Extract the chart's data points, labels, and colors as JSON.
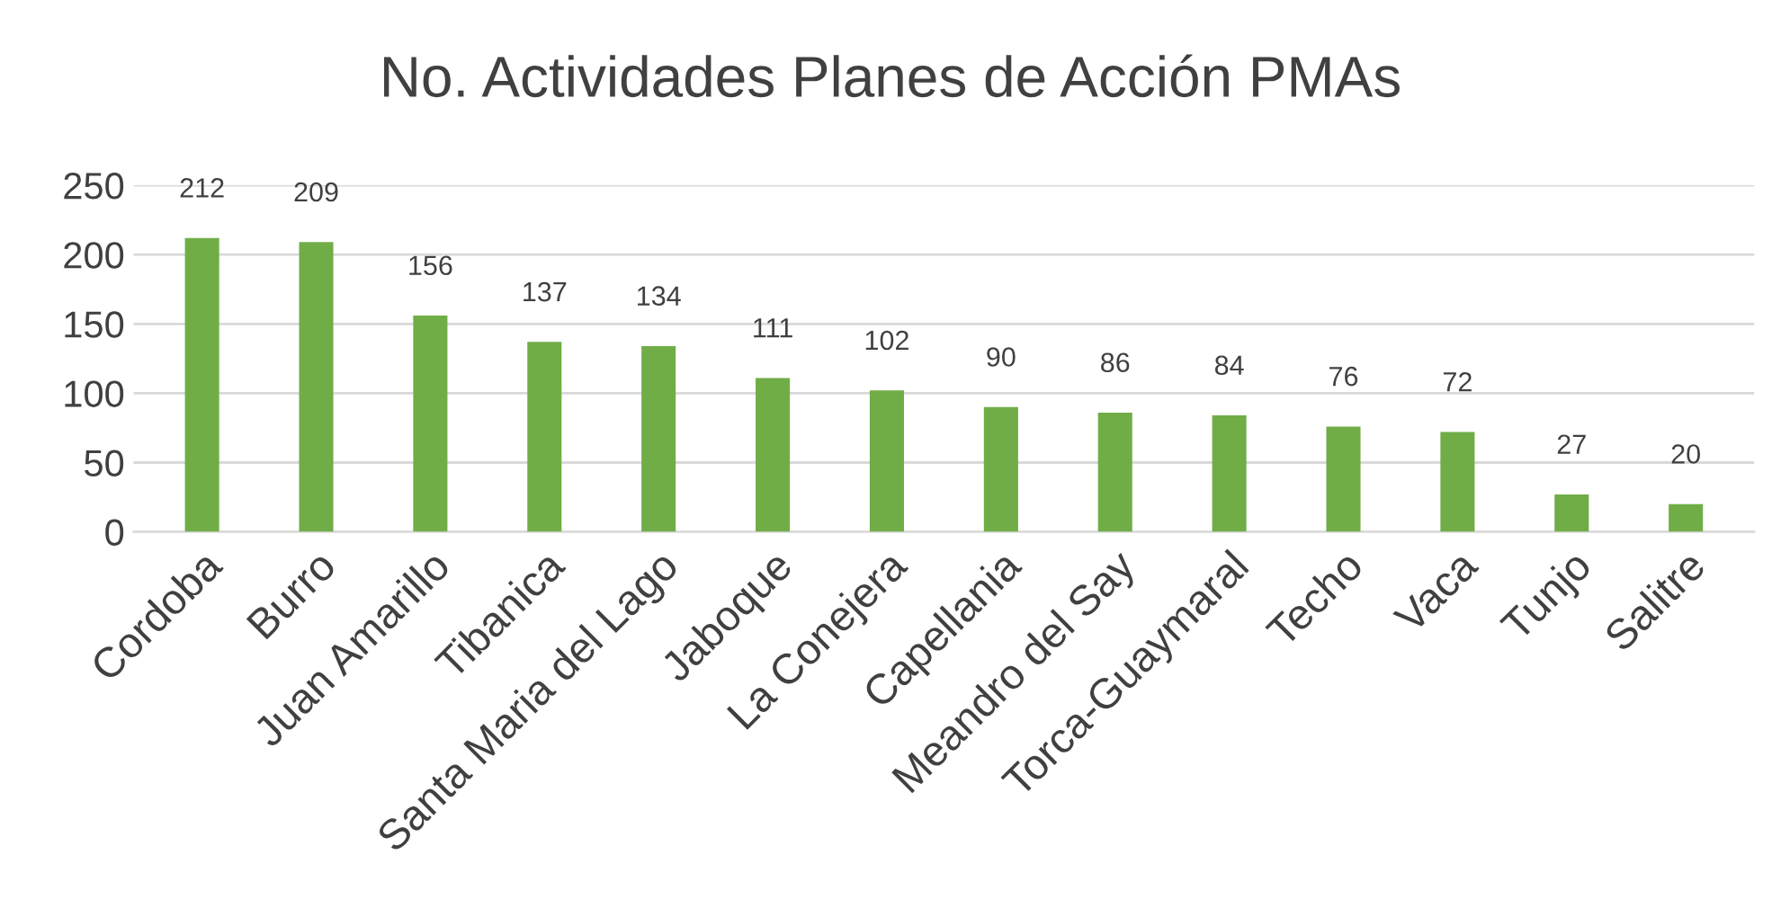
{
  "chart_data": {
    "type": "bar",
    "title": "No. Actividades Planes de Acción PMAs",
    "categories": [
      "Cordoba",
      "Burro",
      "Juan Amarillo",
      "Tibanica",
      "Santa Maria del Lago",
      "Jaboque",
      "La Conejera",
      "Capellania",
      "Meandro del Say",
      "Torca-Guaymaral",
      "Techo",
      "Vaca",
      "Tunjo",
      "Salitre"
    ],
    "values": [
      212,
      209,
      156,
      137,
      134,
      111,
      102,
      90,
      86,
      84,
      76,
      72,
      27,
      20
    ],
    "color": "#70ad47",
    "ylim": [
      0,
      250
    ],
    "yticks": [
      0,
      50,
      100,
      150,
      200,
      250
    ],
    "grid": "y",
    "data_labels": true
  }
}
